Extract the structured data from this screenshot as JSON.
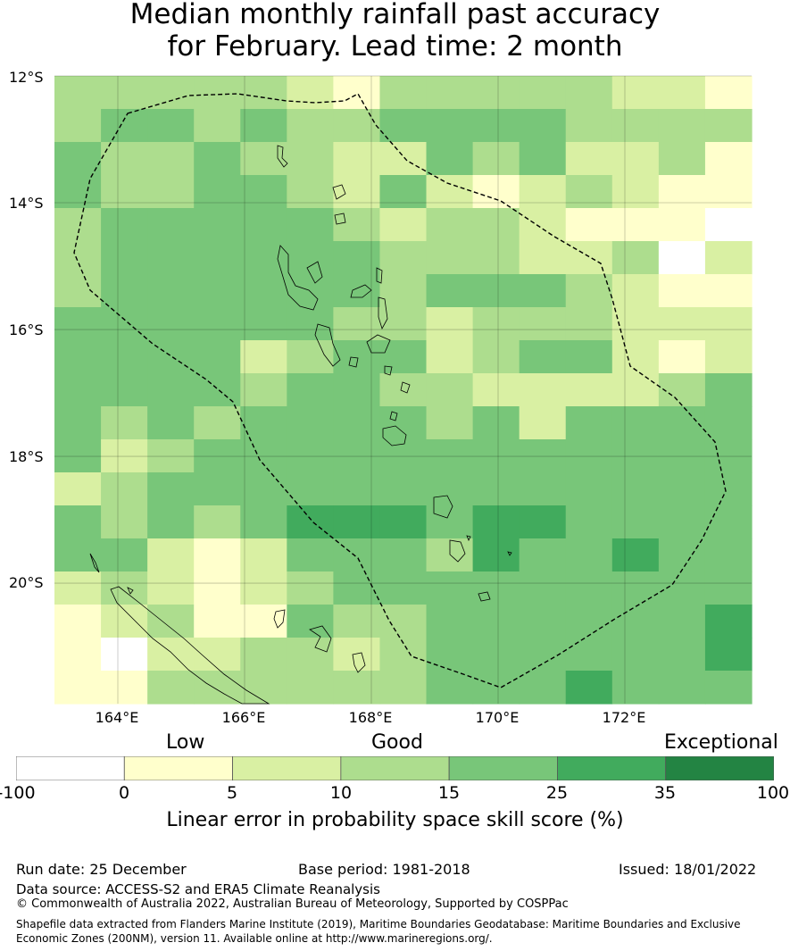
{
  "title": {
    "line1": "Median monthly rainfall past accuracy",
    "line2": "for February. Lead time: 2 month"
  },
  "map": {
    "region": "Vanuatu",
    "lat_labels": [
      "12°S",
      "14°S",
      "16°S",
      "18°S",
      "20°S"
    ],
    "lon_labels": [
      "164°E",
      "166°E",
      "168°E",
      "170°E",
      "172°E"
    ],
    "lat_values": [
      -12,
      -14,
      -16,
      -18,
      -20
    ],
    "lon_values": [
      164,
      166,
      168,
      170,
      172
    ],
    "extent": {
      "lon_min": 163.0,
      "lon_max": 174.0,
      "lat_max": -12.0,
      "lat_min": -21.9
    },
    "cell_size_deg": 0.83,
    "grid_levels_legend": "0=<0, 1=0-5, 2=5-10, 3=10-15, 4=15-25, 5=25-35, 6=35-100",
    "grid": [
      [
        3,
        3,
        3,
        3,
        3,
        2,
        1,
        3,
        3,
        3,
        3,
        3,
        2,
        2,
        1
      ],
      [
        3,
        4,
        4,
        3,
        4,
        3,
        3,
        4,
        4,
        4,
        4,
        3,
        3,
        3,
        3
      ],
      [
        4,
        3,
        3,
        4,
        3,
        3,
        2,
        2,
        4,
        3,
        4,
        2,
        2,
        3,
        1
      ],
      [
        4,
        3,
        3,
        4,
        4,
        3,
        2,
        4,
        2,
        1,
        2,
        3,
        2,
        1,
        1
      ],
      [
        3,
        4,
        4,
        4,
        4,
        4,
        3,
        2,
        3,
        3,
        2,
        1,
        1,
        1,
        0
      ],
      [
        3,
        4,
        4,
        4,
        4,
        4,
        4,
        3,
        3,
        3,
        2,
        2,
        3,
        0,
        2
      ],
      [
        3,
        4,
        4,
        4,
        4,
        4,
        4,
        3,
        4,
        4,
        4,
        3,
        2,
        1,
        1
      ],
      [
        4,
        4,
        4,
        4,
        4,
        4,
        3,
        3,
        2,
        3,
        3,
        3,
        2,
        2,
        2
      ],
      [
        4,
        4,
        4,
        4,
        2,
        3,
        4,
        4,
        2,
        3,
        4,
        4,
        2,
        1,
        2
      ],
      [
        4,
        4,
        4,
        4,
        3,
        4,
        4,
        3,
        3,
        2,
        2,
        2,
        2,
        3,
        4
      ],
      [
        4,
        3,
        4,
        3,
        4,
        4,
        4,
        4,
        3,
        4,
        2,
        4,
        4,
        4,
        4
      ],
      [
        4,
        2,
        3,
        4,
        4,
        4,
        4,
        4,
        4,
        4,
        4,
        4,
        4,
        4,
        4
      ],
      [
        2,
        3,
        4,
        4,
        4,
        4,
        4,
        4,
        4,
        4,
        4,
        4,
        4,
        4,
        4
      ],
      [
        4,
        3,
        4,
        3,
        4,
        5,
        5,
        5,
        4,
        5,
        5,
        4,
        4,
        4,
        4
      ],
      [
        4,
        4,
        2,
        1,
        2,
        4,
        4,
        4,
        3,
        5,
        4,
        4,
        5,
        4,
        4
      ],
      [
        2,
        3,
        2,
        1,
        2,
        3,
        4,
        4,
        4,
        4,
        4,
        4,
        4,
        4,
        4
      ],
      [
        1,
        2,
        3,
        1,
        1,
        4,
        3,
        3,
        4,
        4,
        4,
        4,
        4,
        4,
        5
      ],
      [
        1,
        0,
        2,
        2,
        3,
        3,
        2,
        3,
        4,
        4,
        4,
        4,
        4,
        4,
        5
      ],
      [
        1,
        1,
        3,
        3,
        3,
        3,
        3,
        3,
        4,
        4,
        4,
        5,
        4,
        4,
        4
      ]
    ]
  },
  "legend": {
    "categories": [
      "Low",
      "Good",
      "Exceptional"
    ],
    "ticks": [
      "-100",
      "0",
      "5",
      "10",
      "15",
      "25",
      "35",
      "100"
    ],
    "colors": [
      "#ffffff",
      "#ffffcc",
      "#d9f0a3",
      "#addd8e",
      "#78c679",
      "#41ab5d",
      "#238443"
    ],
    "title": "Linear error in probability space skill score (%)"
  },
  "footer": {
    "run_date": "Run date: 25 December",
    "base_period": "Base period: 1981-2018",
    "issued": "Issued: 18/01/2022",
    "data_source": "Data source: ACCESS-S2 and ERA5 Climate Reanalysis",
    "copyright": "© Commonwealth of Australia 2022, Australian Bureau of Meteorology, Supported by COSPPac",
    "shapefile_line1": "Shapefile data extracted from Flanders Marine Institute (2019), Maritime Boundaries Geodatabase: Maritime Boundaries and Exclusive",
    "shapefile_line2": "Economic Zones (200NM), version 11. Available online at http://www.marineregions.org/."
  }
}
